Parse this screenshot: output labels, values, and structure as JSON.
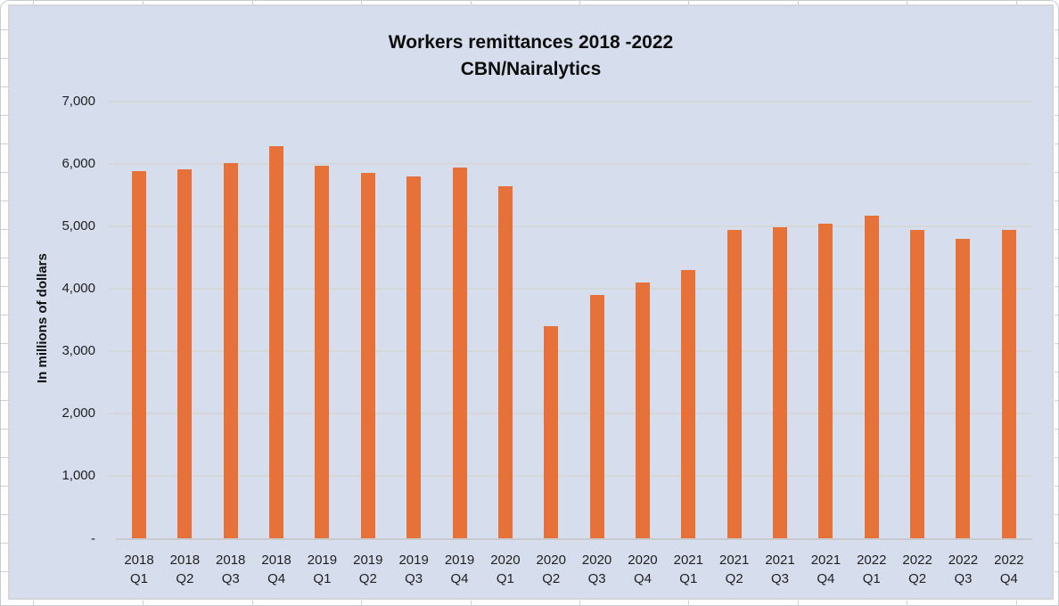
{
  "chart": {
    "title_line1": "Workers remittances 2018 -2022",
    "title_line2": "CBN/Nairalytics",
    "y_axis_title": "In millions of dollars"
  },
  "chart_data": {
    "type": "bar",
    "title": "Workers remittances 2018 -2022",
    "subtitle": "CBN/Nairalytics",
    "xlabel": "",
    "ylabel": "In millions of dollars",
    "categories": [
      "2018 Q1",
      "2018 Q2",
      "2018 Q3",
      "2018 Q4",
      "2019 Q1",
      "2019 Q2",
      "2019 Q3",
      "2019 Q4",
      "2020 Q1",
      "2020 Q2",
      "2020 Q3",
      "2020 Q4",
      "2021 Q1",
      "2021 Q2",
      "2021 Q3",
      "2021 Q4",
      "2022 Q1",
      "2022 Q2",
      "2022 Q3",
      "2022 Q4"
    ],
    "values": [
      5860,
      5900,
      5990,
      6260,
      5950,
      5840,
      5780,
      5920,
      5620,
      3380,
      3890,
      4080,
      4280,
      4930,
      4970,
      5030,
      5150,
      4930,
      4790,
      4930
    ],
    "ylim": [
      0,
      7000
    ],
    "ytick_interval": 1000,
    "ytick_labels": [
      "-",
      "1,000",
      "2,000",
      "3,000",
      "4,000",
      "5,000",
      "6,000",
      "7,000"
    ],
    "grid": true,
    "legend": "none",
    "bar_color": "#e67139",
    "plot_background": "#d6deed"
  }
}
